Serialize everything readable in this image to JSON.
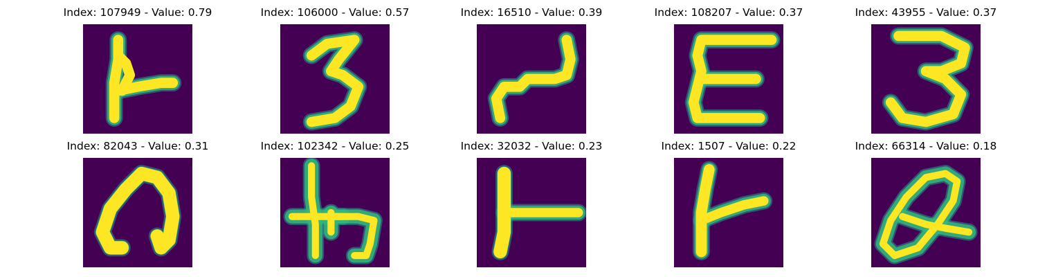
{
  "colors": {
    "background": "#440154",
    "stroke": "#fde725",
    "edge": "#35b779",
    "edge_dark": "#21918c"
  },
  "samples": [
    {
      "index": "107949",
      "value": "0.79",
      "title": "Index: 107949 - Value: 0.79",
      "icon": "handwritten-glyph-L-like"
    },
    {
      "index": "106000",
      "value": "0.57",
      "title": "Index: 106000 - Value: 0.57",
      "icon": "handwritten-digit-3"
    },
    {
      "index": "16510",
      "value": "0.39",
      "title": "Index: 16510 - Value: 0.39",
      "icon": "handwritten-glyph-2-like"
    },
    {
      "index": "108207",
      "value": "0.37",
      "title": "Index: 108207 - Value: 0.37",
      "icon": "handwritten-glyph-E"
    },
    {
      "index": "43955",
      "value": "0.37",
      "title": "Index: 43955 - Value: 0.37",
      "icon": "handwritten-digit-3"
    },
    {
      "index": "82043",
      "value": "0.31",
      "title": "Index: 82043 - Value: 0.31",
      "icon": "handwritten-glyph-arch"
    },
    {
      "index": "102342",
      "value": "0.25",
      "title": "Index: 102342 - Value: 0.25",
      "icon": "handwritten-glyph-h-cross"
    },
    {
      "index": "32032",
      "value": "0.23",
      "title": "Index: 32032 - Value: 0.23",
      "icon": "handwritten-glyph-T-like"
    },
    {
      "index": "1507",
      "value": "0.22",
      "title": "Index: 1507 - Value: 0.22",
      "icon": "handwritten-glyph-K-like"
    },
    {
      "index": "66314",
      "value": "0.18",
      "title": "Index: 66314 - Value: 0.18",
      "icon": "handwritten-glyph-Q-like"
    }
  ]
}
